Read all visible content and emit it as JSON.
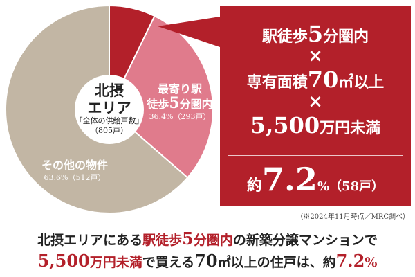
{
  "chart_data": {
    "type": "pie",
    "slices": [
      {
        "label": "",
        "value": 7.2,
        "color": "#b3202a"
      },
      {
        "label": "最寄り駅徒歩5分圏内",
        "value": 29.2,
        "color": "#e07b8c"
      },
      {
        "label": "その他の物件",
        "value": 63.6,
        "color": "#c2b6a4"
      }
    ]
  },
  "center": {
    "area_line1": "北摂",
    "area_line2": "エリア",
    "total_label": "「全体の供給戸数」",
    "total_value": "（805戸）"
  },
  "slice_labels": {
    "station": {
      "line1": "最寄り駅",
      "line2_a": "徒歩",
      "line2_num": "5",
      "line2_b": "分圏内",
      "pct": "36.4%（293戸）"
    },
    "other": {
      "name": "その他の物件",
      "pct": "63.6%（512戸）"
    }
  },
  "callout": {
    "line1_a": "駅徒歩",
    "line1_num": "5",
    "line1_b": "分圏内",
    "times1": "×",
    "line2_a": "専有面積",
    "line2_num": "70",
    "line2_b": "㎡以上",
    "times2": "×",
    "line3_num": "5,500",
    "line3_b": "万円未満",
    "result_pre": "約",
    "result_value": "7.2",
    "result_unit": "%",
    "result_count": "（58戸）"
  },
  "note": "（※2024年11月時点／MRC調べ）",
  "headline": {
    "l1_a": "北摂エリアにある",
    "l1_hl_a": "駅徒歩",
    "l1_hl_num": "5",
    "l1_hl_b": "分圏内",
    "l1_b": "の新築分譲マンションで",
    "l2_hl_num": "5,500",
    "l2_hl_a": "万円未満",
    "l2_a": "で買える",
    "l2_num": "70",
    "l2_b": "㎡以上の住戸は、約",
    "l2_hl_val": "7.2",
    "l2_hl_pct": "%"
  }
}
